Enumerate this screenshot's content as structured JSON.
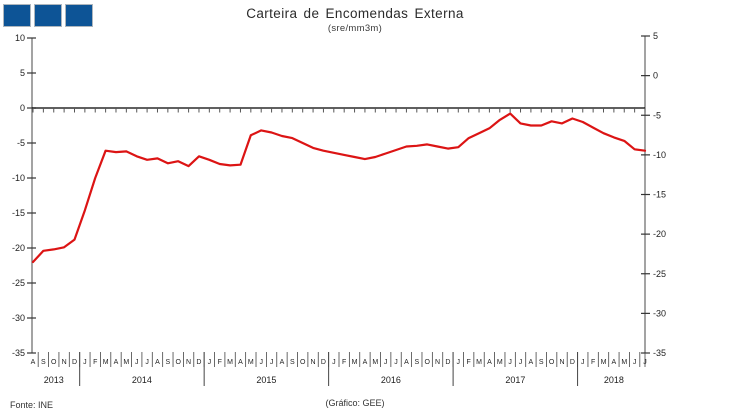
{
  "header": {
    "title": "Carteira de Encomendas Externa",
    "subtitle": "(sre/mm3m)"
  },
  "footer": {
    "source": "Fonte: INE",
    "credit": "(Gráfico: GEE)"
  },
  "colors": {
    "line": "#dc1414",
    "axis": "#666666",
    "tick": "#333333",
    "zero_line": "#000000",
    "label": "#222222",
    "square_fill": "#0d5496",
    "square_border": "#aeb6bd"
  },
  "chart_data": {
    "type": "line",
    "title": "Carteira de Encomendas Externa",
    "subtitle": "(sre/mm3m)",
    "grid": false,
    "legend": "none",
    "x_start": "2013-08",
    "x_end": "2018-07",
    "month_letters": [
      "A",
      "S",
      "O",
      "N",
      "D",
      "J",
      "F",
      "M",
      "A",
      "M",
      "J",
      "J",
      "A",
      "S",
      "O",
      "N",
      "D",
      "J",
      "F",
      "M",
      "A",
      "M",
      "J",
      "J",
      "A",
      "S",
      "O",
      "N",
      "D",
      "J",
      "F",
      "M",
      "A",
      "M",
      "J",
      "J",
      "A",
      "S",
      "O",
      "N",
      "D",
      "J",
      "F",
      "M",
      "A",
      "M",
      "J",
      "J",
      "A",
      "S",
      "O",
      "N",
      "D",
      "J",
      "F",
      "M",
      "A",
      "M",
      "J",
      "J"
    ],
    "years": [
      {
        "label": "2013",
        "count": 5
      },
      {
        "label": "2014",
        "count": 12
      },
      {
        "label": "2015",
        "count": 12
      },
      {
        "label": "2016",
        "count": 12
      },
      {
        "label": "2017",
        "count": 12
      },
      {
        "label": "2018",
        "count": 7
      }
    ],
    "left_axis": {
      "ticks": [
        10,
        5,
        0,
        -5,
        -10,
        -15,
        -20,
        -25,
        -30,
        -35
      ],
      "min": -35,
      "max": 10
    },
    "right_axis": {
      "ticks": [
        5,
        0,
        -5,
        -10,
        -15,
        -20,
        -25,
        -30,
        -35
      ],
      "min": -35,
      "max": 5
    },
    "zero_line": true,
    "series": [
      {
        "name": "Carteira de Encomendas Externa (sre/mm3m)",
        "color": "#dc1414",
        "values": [
          -22.0,
          -20.4,
          -20.2,
          -19.9,
          -18.8,
          -14.6,
          -10.0,
          -6.1,
          -6.3,
          -6.2,
          -6.9,
          -7.4,
          -7.2,
          -7.9,
          -7.6,
          -8.3,
          -6.9,
          -7.4,
          -8.0,
          -8.2,
          -8.1,
          -3.9,
          -3.2,
          -3.5,
          -4.0,
          -4.3,
          -5.0,
          -5.7,
          -6.1,
          -6.4,
          -6.7,
          -7.0,
          -7.3,
          -7.0,
          -6.5,
          -6.0,
          -5.5,
          -5.4,
          -5.2,
          -5.5,
          -5.8,
          -5.6,
          -4.3,
          -3.6,
          -2.9,
          -1.7,
          -0.8,
          -2.2,
          -2.5,
          -2.5,
          -1.9,
          -2.2,
          -1.5,
          -2.0,
          -2.8,
          -3.6,
          -4.2,
          -4.7,
          -5.9,
          -6.1
        ]
      }
    ]
  }
}
